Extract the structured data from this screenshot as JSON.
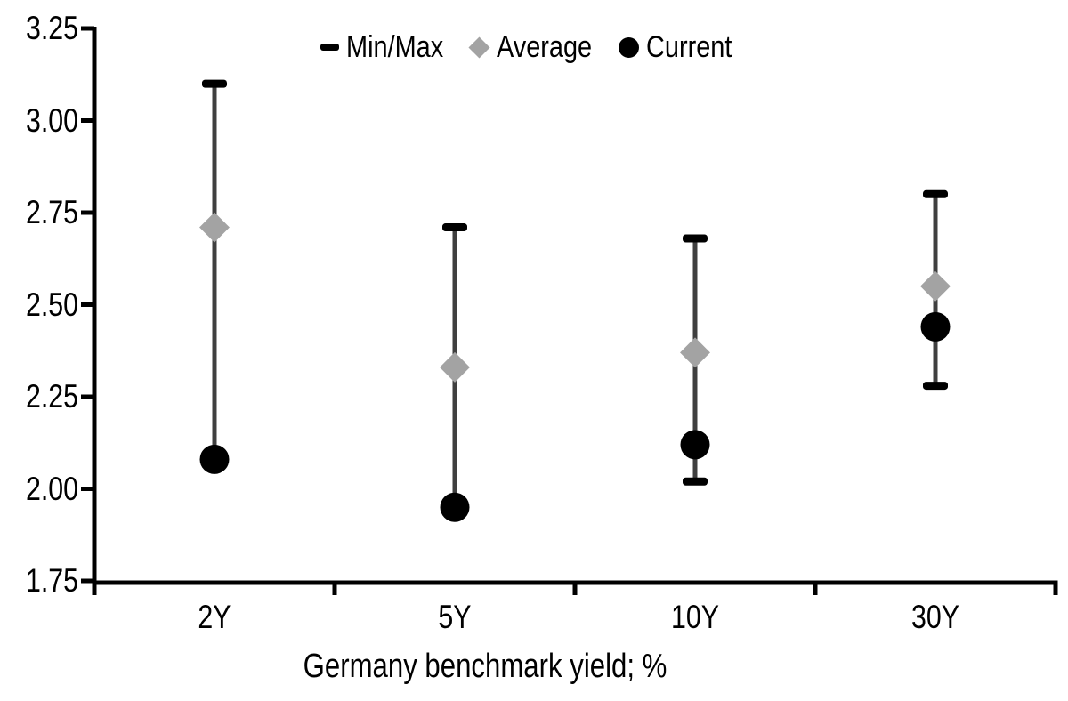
{
  "chart_data": {
    "type": "scatter",
    "title": "",
    "xlabel": "Germany benchmark yield; %",
    "ylabel": "",
    "ylim": [
      1.75,
      3.25
    ],
    "y_tick_labels": [
      "3.25",
      "3.00",
      "2.75",
      "2.50",
      "2.25",
      "2.00",
      "1.75"
    ],
    "categories": [
      "2Y",
      "5Y",
      "10Y",
      "30Y"
    ],
    "series": [
      {
        "name": "Min/Max",
        "type": "range",
        "min": [
          2.08,
          1.95,
          2.02,
          2.28
        ],
        "max": [
          3.1,
          2.71,
          2.68,
          2.8
        ]
      },
      {
        "name": "Average",
        "type": "point",
        "marker": "diamond",
        "values": [
          2.71,
          2.33,
          2.37,
          2.55
        ]
      },
      {
        "name": "Current",
        "type": "point",
        "marker": "circle",
        "values": [
          2.08,
          1.95,
          2.12,
          2.44
        ]
      }
    ],
    "legend": [
      {
        "label": "Min/Max",
        "marker": "dash"
      },
      {
        "label": "Average",
        "marker": "diamond"
      },
      {
        "label": "Current",
        "marker": "circle"
      }
    ],
    "legend_position": "top-center",
    "grid": false,
    "colors": {
      "range_line": "#3f3f3f",
      "cap": "#000000",
      "average": "#a3a3a3",
      "current": "#000000",
      "axis": "#000000",
      "text": "#000000",
      "background": "#ffffff"
    }
  }
}
